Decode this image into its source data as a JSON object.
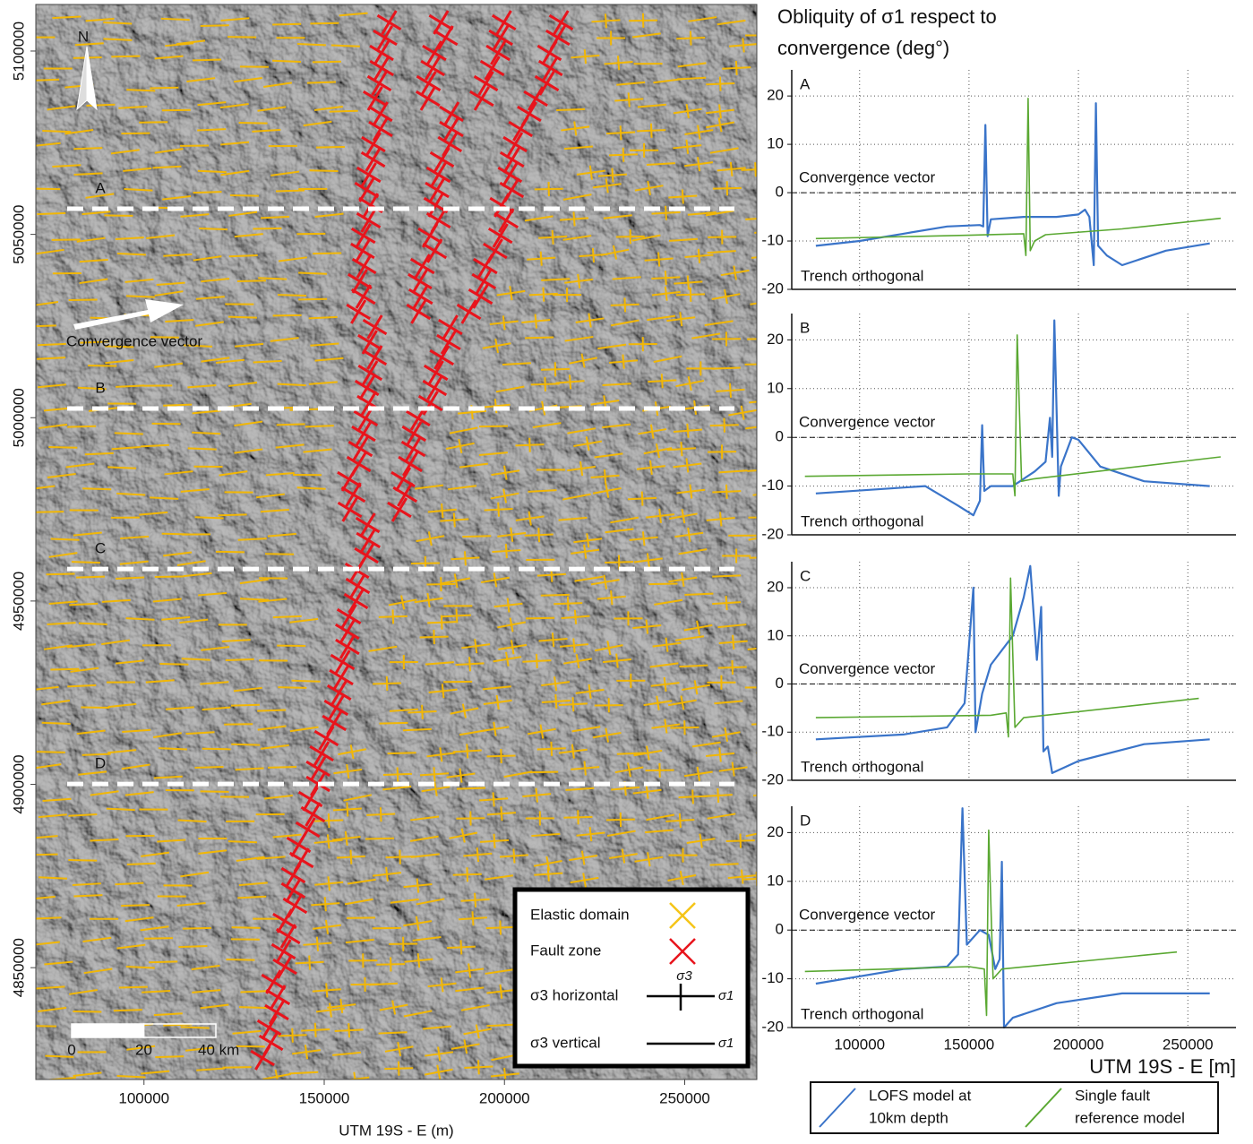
{
  "chart_data": [
    {
      "type": "map",
      "xlabel": "UTM 19S - E (m)",
      "xlim": [
        70000,
        270000
      ],
      "xticks": [
        100000,
        150000,
        200000,
        250000
      ],
      "ylim": [
        4819500,
        5112700
      ],
      "yticks": [
        4850000,
        4900000,
        4950000,
        5000000,
        5050000,
        5100000
      ],
      "profiles": [
        {
          "label": "A",
          "y": 5057000
        },
        {
          "label": "B",
          "y": 5002500
        },
        {
          "label": "C",
          "y": 4958750
        },
        {
          "label": "D",
          "y": 4900100
        }
      ],
      "north": "N",
      "convergence": "Convergence vector",
      "scale_bar": [
        0,
        20,
        {
          "value": 40,
          "label": "40 km"
        }
      ],
      "legend": [
        {
          "label": "Elastic domain",
          "color": "#f5c518"
        },
        {
          "label": "Fault zone",
          "color": "#e8141c"
        },
        {
          "label": "σ3 horizontal"
        },
        {
          "label": "σ3 vertical"
        }
      ],
      "legend_symbols": {
        "s3": "σ3",
        "s1": "σ1"
      }
    },
    {
      "type": "line",
      "label": "A",
      "annotations": [
        "Convergence vector",
        "Trench orthogonal"
      ],
      "xlim": [
        69000,
        272000
      ],
      "xticks": [
        100000,
        150000,
        200000,
        250000
      ],
      "ylim": [
        -20,
        25.4
      ],
      "yticks": [
        -20,
        -10,
        0,
        10,
        20
      ],
      "series": [
        {
          "color": "#3a74c9",
          "x": [
            80000,
            100000,
            120000,
            140000,
            155000,
            156500,
            157500,
            158500,
            160000,
            175000,
            190000,
            200000,
            203000,
            205000,
            207000,
            208000,
            209000,
            213000,
            220000,
            240000,
            260000
          ],
          "values": [
            -11,
            -10,
            -8.5,
            -7,
            -6.7,
            -7,
            14,
            -9,
            -5.5,
            -5,
            -5,
            -4.5,
            -3.5,
            -5,
            -15,
            18.5,
            -11,
            -13,
            -15,
            -12,
            -10.5
          ]
        },
        {
          "color": "#5aa832",
          "x": [
            80000,
            150000,
            175000,
            176000,
            177000,
            178000,
            180000,
            185000,
            220000,
            265000
          ],
          "values": [
            -9.5,
            -8.8,
            -8.5,
            -13,
            19.5,
            -12,
            -10,
            -8.7,
            -7.5,
            -5.3
          ]
        }
      ]
    },
    {
      "type": "line",
      "label": "B",
      "annotations": [
        "Convergence vector",
        "Trench orthogonal"
      ],
      "xlim": [
        69000,
        272000
      ],
      "xticks": [
        100000,
        150000,
        200000,
        250000
      ],
      "ylim": [
        -20,
        25.4
      ],
      "yticks": [
        -20,
        -10,
        0,
        10,
        20
      ],
      "series": [
        {
          "color": "#3a74c9",
          "x": [
            80000,
            130000,
            145000,
            152000,
            155000,
            156000,
            157000,
            160000,
            170000,
            180000,
            185000,
            187000,
            188000,
            189000,
            191000,
            192000,
            197000,
            200000,
            210000,
            230000,
            260000
          ],
          "values": [
            -11.5,
            -10,
            -14,
            -16,
            -13,
            2.5,
            -11,
            -10,
            -10,
            -7,
            -5,
            4,
            -4,
            24,
            -12,
            -6,
            0,
            -0.5,
            -6,
            -9,
            -10
          ]
        },
        {
          "color": "#5aa832",
          "x": [
            75000,
            150000,
            170000,
            171000,
            172000,
            174000,
            180000,
            265000
          ],
          "values": [
            -8,
            -7.5,
            -7.5,
            -12,
            21,
            -9,
            -8.5,
            -4
          ]
        }
      ]
    },
    {
      "type": "line",
      "label": "C",
      "annotations": [
        "Convergence vector",
        "Trench orthogonal"
      ],
      "xlim": [
        69000,
        272000
      ],
      "xticks": [
        100000,
        150000,
        200000,
        250000
      ],
      "ylim": [
        -20,
        25.4
      ],
      "yticks": [
        -20,
        -10,
        0,
        10,
        20
      ],
      "series": [
        {
          "color": "#3a74c9",
          "x": [
            80000,
            120000,
            140000,
            148000,
            152000,
            153000,
            156000,
            160000,
            170000,
            175000,
            178000,
            181000,
            183000,
            184000,
            186000,
            188000,
            200000,
            230000,
            260000
          ],
          "values": [
            -11.5,
            -10.5,
            -9,
            -4,
            20,
            -10,
            -2,
            4,
            10,
            18,
            24.5,
            5,
            16,
            -14,
            -13,
            -18.5,
            -16,
            -12.5,
            -11.5
          ]
        },
        {
          "color": "#5aa832",
          "x": [
            80000,
            160000,
            167000,
            168000,
            169000,
            171000,
            175000,
            255000
          ],
          "values": [
            -7,
            -6.5,
            -6,
            -11,
            22,
            -9,
            -7,
            -3
          ]
        }
      ]
    },
    {
      "type": "line",
      "label": "D",
      "annotations": [
        "Convergence vector",
        "Trench orthogonal"
      ],
      "xlim": [
        69000,
        272000
      ],
      "xticks": [
        100000,
        150000,
        200000,
        250000
      ],
      "ylim": [
        -20,
        25.4
      ],
      "yticks": [
        -20,
        -10,
        0,
        10,
        20
      ],
      "series": [
        {
          "color": "#3a74c9",
          "x": [
            80000,
            120000,
            140000,
            145000,
            147000,
            149000,
            155000,
            159000,
            162000,
            164000,
            165000,
            166000,
            170000,
            190000,
            220000,
            260000
          ],
          "values": [
            -11,
            -8,
            -7.5,
            -5,
            25,
            -3,
            0,
            -1,
            -8,
            -6,
            14,
            -20,
            -18,
            -15,
            -13,
            -13
          ]
        },
        {
          "color": "#5aa832",
          "x": [
            75000,
            150000,
            157000,
            158000,
            159000,
            161000,
            165000,
            245000
          ],
          "values": [
            -8.5,
            -7.5,
            -8,
            -17.5,
            20.5,
            -10,
            -8,
            -4.5
          ]
        }
      ]
    }
  ],
  "figure": {
    "title": [
      "Obliquity of σ1 respect to",
      "convergence (deg°)"
    ],
    "xlabel": "UTM 19S - E [m]",
    "legend": [
      {
        "lines": [
          "LOFS model at",
          "10km depth"
        ],
        "color": "#3a74c9"
      },
      {
        "lines": [
          "Single fault",
          "reference model"
        ],
        "color": "#5aa832"
      }
    ]
  }
}
